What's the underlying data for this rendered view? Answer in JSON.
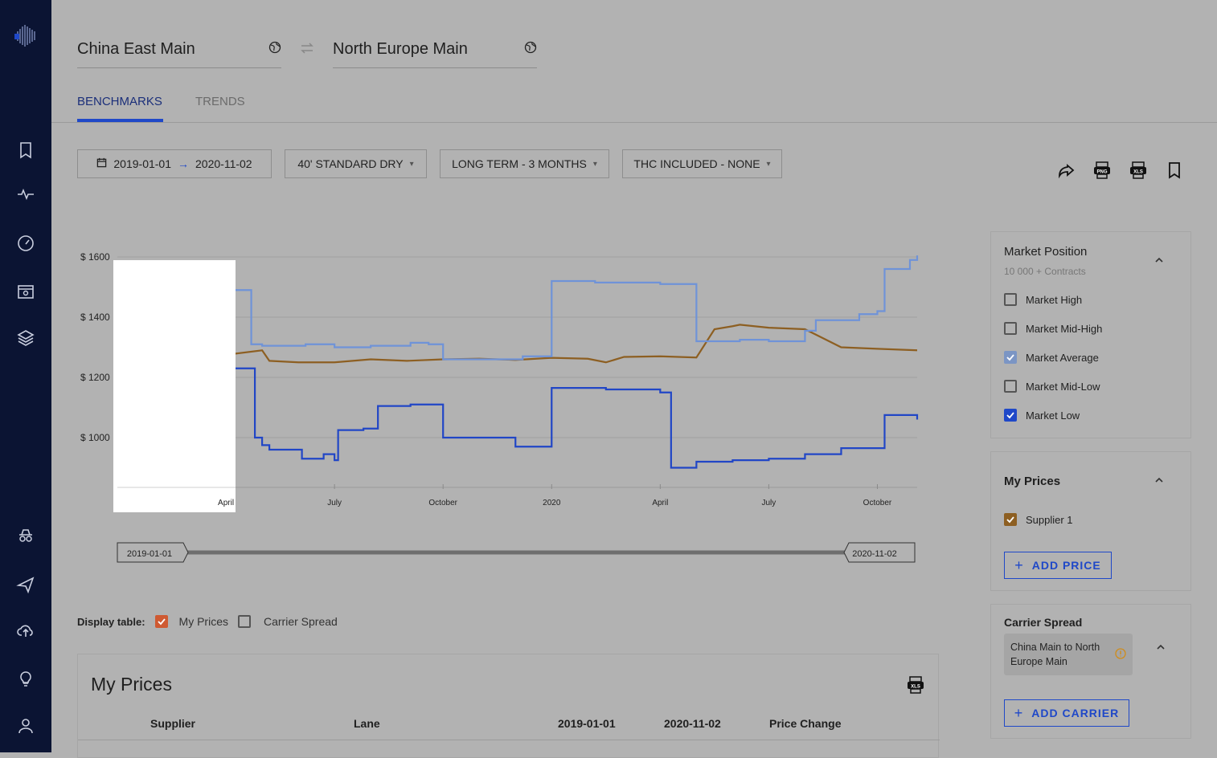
{
  "route": {
    "origin": "China East Main",
    "destination": "North Europe Main"
  },
  "tabs": [
    {
      "label": "BENCHMARKS",
      "active": true
    },
    {
      "label": "TRENDS",
      "active": false
    }
  ],
  "filters": {
    "date_start": "2019-01-01",
    "date_end": "2020-11-02",
    "container": "40' STANDARD DRY",
    "term": "LONG TERM - 3 MONTHS",
    "thc": "THC INCLUDED - NONE"
  },
  "toolbar_icons": [
    "share-icon",
    "png-export-icon",
    "xls-export-icon",
    "bookmark-icon"
  ],
  "chart_data": {
    "type": "line",
    "y_ticks": [
      "$ 1600",
      "$ 1400",
      "$ 1200",
      "$ 1000"
    ],
    "y_tick_values": [
      1600,
      1400,
      1200,
      1000
    ],
    "x_ticks": [
      "April",
      "July",
      "October",
      "2020",
      "April",
      "July",
      "October"
    ],
    "x_tick_values": [
      3,
      6,
      9,
      12,
      15,
      18,
      21
    ],
    "xlim": [
      0,
      22.1
    ],
    "ylim": [
      840,
      1600
    ],
    "colors": {
      "market_average": "#6f93d8",
      "market_low": "#2146c6",
      "supplier_1": "#8d5f22"
    },
    "series": [
      {
        "name": "Market Average",
        "key": "market_average",
        "step": true,
        "x": [
          0,
          2.0,
          3.0,
          3.7,
          4.0,
          5.2,
          6.0,
          7.0,
          8.1,
          8.6,
          9.0,
          11.0,
          11.2,
          12.0,
          13.2,
          15.0,
          16.0,
          17.2,
          18.0,
          19.0,
          19.3,
          20.5,
          21.0,
          21.2,
          21.9,
          22.1
        ],
        "y": [
          1500,
          1495,
          1490,
          1310,
          1305,
          1310,
          1300,
          1305,
          1315,
          1310,
          1260,
          1260,
          1270,
          1520,
          1515,
          1510,
          1320,
          1325,
          1320,
          1355,
          1390,
          1410,
          1420,
          1560,
          1590,
          1605
        ]
      },
      {
        "name": "Market Low",
        "key": "market_low",
        "step": true,
        "x": [
          0,
          2.0,
          2.8,
          3.0,
          3.8,
          4.0,
          4.2,
          5.1,
          5.7,
          6.0,
          6.1,
          6.8,
          7.2,
          8.1,
          9.0,
          9.5,
          11.0,
          11.5,
          12.0,
          13.5,
          15.0,
          15.3,
          16.0,
          17.0,
          18.0,
          19.0,
          20.0,
          21.0,
          21.2,
          22.1
        ],
        "y": [
          1245,
          1245,
          1240,
          1230,
          1000,
          975,
          960,
          930,
          945,
          925,
          1025,
          1030,
          1105,
          1110,
          1000,
          1000,
          970,
          970,
          1165,
          1160,
          1150,
          900,
          920,
          925,
          930,
          945,
          965,
          965,
          1075,
          1060
        ]
      },
      {
        "name": "Supplier 1",
        "key": "supplier_1",
        "step": false,
        "x": [
          0,
          1.0,
          2.0,
          3.0,
          4.0,
          4.2,
          5.0,
          6.0,
          7.0,
          8.0,
          9.0,
          10.0,
          11.0,
          12.0,
          13.0,
          13.5,
          14.0,
          15.0,
          16.0,
          16.5,
          17.0,
          17.2,
          18.0,
          19.0,
          20.0,
          21.0,
          22.1
        ],
        "y": [
          1280,
          1275,
          1285,
          1275,
          1290,
          1255,
          1250,
          1250,
          1260,
          1255,
          1260,
          1262,
          1258,
          1265,
          1262,
          1250,
          1268,
          1270,
          1266,
          1360,
          1370,
          1375,
          1365,
          1360,
          1300,
          1295,
          1290
        ]
      }
    ]
  },
  "slider": {
    "start": "2019-01-01",
    "end": "2020-11-02"
  },
  "display_table": {
    "label": "Display table:",
    "options": [
      {
        "label": "My Prices",
        "checked": true
      },
      {
        "label": "Carrier Spread",
        "checked": false
      }
    ]
  },
  "my_prices_table": {
    "title": "My Prices",
    "columns": [
      "Supplier",
      "Lane",
      "2019-01-01",
      "2020-11-02",
      "Price Change"
    ]
  },
  "market_position": {
    "title": "Market Position",
    "subtitle": "10 000 + Contracts",
    "options": [
      {
        "label": "Market High",
        "checked": false
      },
      {
        "label": "Market Mid-High",
        "checked": false
      },
      {
        "label": "Market Average",
        "checked": true
      },
      {
        "label": "Market Mid-Low",
        "checked": false
      },
      {
        "label": "Market Low",
        "checked": true
      }
    ]
  },
  "my_prices_panel": {
    "title": "My Prices",
    "options": [
      {
        "label": "Supplier 1",
        "checked": true
      }
    ],
    "add_button": "ADD PRICE"
  },
  "carrier_spread": {
    "title": "Carrier Spread",
    "chip": "China Main to North Europe Main",
    "add_button": "ADD CARRIER"
  }
}
